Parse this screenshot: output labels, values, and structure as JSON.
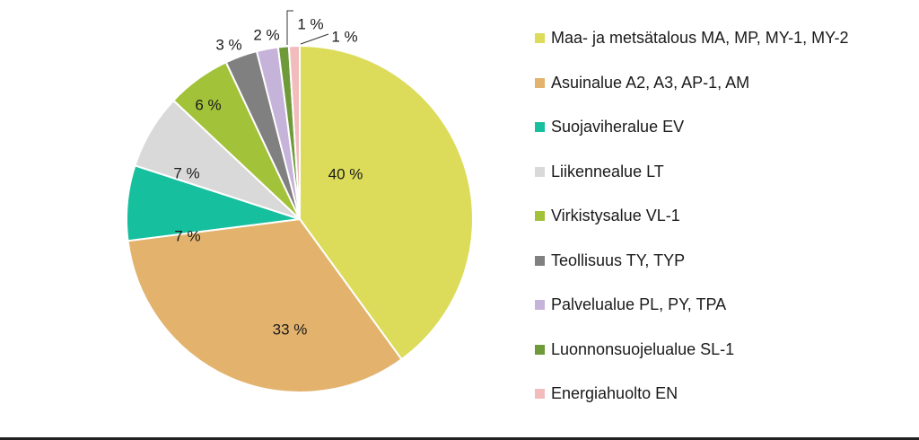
{
  "chart_data": {
    "type": "pie",
    "title": "",
    "slices": [
      {
        "label": "Maa- ja metsätalous MA, MP, MY-1, MY-2",
        "value": 40,
        "value_label": "40 %",
        "color": "#dcdc5a"
      },
      {
        "label": "Asuinalue A2, A3, AP-1, AM",
        "value": 33,
        "value_label": "33 %",
        "color": "#e3b36e"
      },
      {
        "label": "Suojaviheralue EV",
        "value": 7,
        "value_label": "7 %",
        "color": "#16bf9d"
      },
      {
        "label": "Liikennealue LT",
        "value": 7,
        "value_label": "7 %",
        "color": "#d9d9d9"
      },
      {
        "label": "Virkistysalue VL-1",
        "value": 6,
        "value_label": "6 %",
        "color": "#a2c23a"
      },
      {
        "label": "Teollisuus TY, TYP",
        "value": 3,
        "value_label": "3 %",
        "color": "#808080"
      },
      {
        "label": "Palvelualue PL, PY, TPA",
        "value": 2,
        "value_label": "2 %",
        "color": "#c5b3d9"
      },
      {
        "label": "Luonnonsuojelualue SL-1",
        "value": 1,
        "value_label": "1 %",
        "color": "#6f9a3a"
      },
      {
        "label": "Energiahuolto EN",
        "value": 1,
        "value_label": "1 %",
        "color": "#f2bcbc"
      }
    ],
    "legend_position": "right",
    "start_angle": "top, clockwise"
  }
}
